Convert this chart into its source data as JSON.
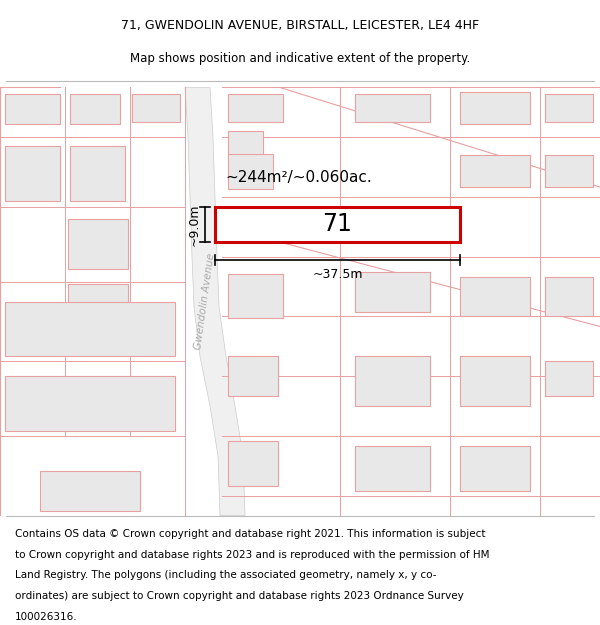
{
  "title_line1": "71, GWENDOLIN AVENUE, BIRSTALL, LEICESTER, LE4 4HF",
  "title_line2": "Map shows position and indicative extent of the property.",
  "footer_text": "Contains OS data © Crown copyright and database right 2021. This information is subject to Crown copyright and database rights 2023 and is reproduced with the permission of HM Land Registry. The polygons (including the associated geometry, namely x, y co-ordinates) are subject to Crown copyright and database rights 2023 Ordnance Survey 100026316.",
  "area_label": "~244m²/~0.060ac.",
  "width_label": "~37.5m",
  "height_label": "~9.0m",
  "property_number": "71",
  "map_bg": "#ffffff",
  "building_fill": "#e8e8e8",
  "building_edge": "#e8a0a0",
  "highlight_fill": "#ffffff",
  "highlight_edge": "#cc0000",
  "road_fill": "#f0f0f0",
  "road_edge": "#aaaaaa",
  "boundary_color": "#e8a0a0",
  "street_label": "Gwendolin Avenue",
  "title_fontsize": 9.0,
  "subtitle_fontsize": 8.5,
  "footer_fontsize": 7.5
}
